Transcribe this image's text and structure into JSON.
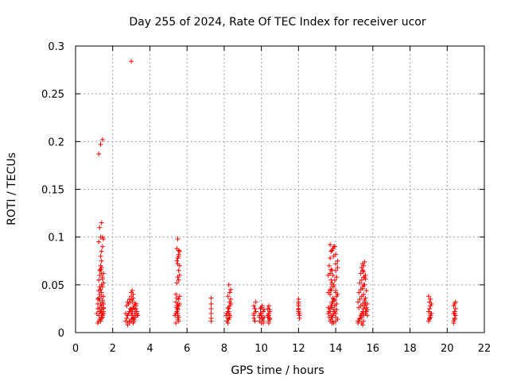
{
  "chart_data": {
    "type": "scatter",
    "title": "Day 255 of 2024, Rate Of TEC Index for receiver ucor",
    "xlabel": "GPS time / hours",
    "ylabel": "ROTI / TECUs",
    "xlim": [
      0,
      22
    ],
    "ylim": [
      0,
      0.3
    ],
    "xticks": [
      0,
      2,
      4,
      6,
      8,
      10,
      12,
      14,
      16,
      18,
      20,
      22
    ],
    "yticks": [
      0,
      0.05,
      0.1,
      0.15,
      0.2,
      0.25,
      0.3
    ],
    "xtick_labels": [
      "0",
      "2",
      "4",
      "6",
      "8",
      "10",
      "12",
      "14",
      "16",
      "18",
      "20",
      "22"
    ],
    "ytick_labels": [
      "0",
      "0.05",
      "0.1",
      "0.15",
      "0.2",
      "0.25",
      "0.3"
    ],
    "grid": true,
    "marker": "+",
    "color": "#ff0000",
    "series": [
      {
        "x": [
          1.15,
          1.2,
          1.25,
          1.3,
          1.35,
          1.4,
          1.45,
          1.5,
          1.2,
          1.3,
          1.4,
          1.45,
          1.5,
          1.35,
          1.4,
          1.5,
          1.25,
          1.3,
          1.4,
          1.45,
          1.3,
          1.4,
          1.5,
          1.45,
          1.35,
          1.4,
          1.5,
          1.2,
          1.25,
          1.3,
          1.4,
          1.45,
          1.5,
          1.35,
          1.4,
          1.45,
          1.25,
          1.35,
          1.45,
          1.5,
          1.3,
          1.4,
          1.25,
          1.35,
          1.45,
          1.2,
          1.3,
          1.4,
          1.5,
          1.35,
          1.45,
          1.25,
          1.3,
          1.4,
          1.5,
          1.35,
          1.4,
          1.45,
          1.3,
          1.25,
          1.4,
          1.45,
          1.5,
          1.35,
          1.4,
          1.45,
          2.7,
          2.75,
          2.8,
          2.85,
          2.9,
          2.95,
          3.0,
          3.05,
          3.1,
          3.15,
          3.2,
          3.25,
          3.3,
          3.35,
          2.8,
          2.9,
          3.0,
          3.1,
          3.2,
          3.3,
          2.75,
          2.85,
          2.95,
          3.05,
          3.15,
          3.25,
          2.8,
          2.9,
          3.0,
          3.1,
          3.2,
          3.3,
          2.85,
          2.95,
          3.05,
          3.15,
          3.25,
          2.7,
          2.8,
          2.9,
          3.0,
          3.1,
          3.2,
          3.3,
          2.9,
          3.0,
          3.1,
          3.0,
          3.05,
          3.1,
          3.0,
          3.05,
          3.2,
          2.8,
          3.1,
          3.25,
          2.9,
          3.15,
          3.0,
          3.1,
          5.35,
          5.4,
          5.45,
          5.5,
          5.55,
          5.6,
          5.4,
          5.45,
          5.5,
          5.55,
          5.6,
          5.4,
          5.45,
          5.5,
          5.55,
          5.6,
          5.45,
          5.5,
          5.55,
          5.6,
          5.45,
          5.5,
          5.55,
          5.6,
          5.5,
          5.55,
          5.45,
          5.5,
          5.55,
          5.5,
          5.55,
          5.45,
          5.5,
          5.4,
          5.5,
          5.45,
          5.55,
          5.5,
          7.3,
          7.3,
          7.3,
          7.3,
          7.3,
          7.3,
          8.1,
          8.15,
          8.2,
          8.25,
          8.3,
          8.35,
          8.2,
          8.25,
          8.3,
          8.35,
          8.2,
          8.25,
          8.3,
          8.15,
          8.2,
          8.25,
          8.3,
          8.35,
          8.25,
          8.3,
          8.2,
          8.3,
          9.6,
          9.65,
          9.7,
          9.6,
          9.7,
          9.6,
          9.65,
          9.7,
          9.65,
          9.6,
          9.9,
          10.0,
          10.1,
          9.95,
          10.05,
          10.15,
          9.9,
          10.0,
          10.1,
          9.95,
          10.05,
          10.15,
          10.0,
          10.1,
          9.9,
          10.0,
          10.1,
          10.05,
          10.35,
          10.4,
          10.45,
          10.35,
          10.4,
          10.45,
          10.35,
          10.4,
          10.45,
          10.4,
          10.35,
          10.4,
          10.45,
          10.4,
          12.0,
          12.0,
          12.0,
          12.0,
          12.0,
          12.0,
          12.0,
          12.0,
          12.05,
          12.05,
          12.05,
          13.6,
          13.65,
          13.7,
          13.75,
          13.8,
          13.85,
          13.9,
          13.95,
          14.0,
          14.05,
          14.1,
          13.6,
          13.7,
          13.8,
          13.9,
          14.0,
          14.1,
          13.65,
          13.75,
          13.85,
          13.95,
          14.05,
          13.6,
          13.7,
          13.8,
          13.9,
          14.0,
          14.1,
          13.65,
          13.75,
          13.85,
          13.95,
          14.05,
          13.6,
          13.7,
          13.8,
          13.9,
          14.0,
          14.1,
          13.7,
          13.8,
          13.9,
          14.0,
          13.75,
          13.85,
          13.95,
          13.7,
          13.8,
          13.9,
          13.8,
          13.85,
          13.7,
          13.75,
          13.8,
          13.75,
          13.8,
          13.7,
          13.75,
          13.8,
          13.85,
          13.9,
          14.0,
          13.9,
          14.0,
          14.05,
          13.95,
          14.0,
          15.2,
          15.25,
          15.3,
          15.35,
          15.4,
          15.45,
          15.5,
          15.55,
          15.6,
          15.65,
          15.7,
          15.2,
          15.3,
          15.4,
          15.5,
          15.6,
          15.7,
          15.25,
          15.35,
          15.45,
          15.55,
          15.65,
          15.2,
          15.3,
          15.4,
          15.5,
          15.6,
          15.7,
          15.25,
          15.35,
          15.45,
          15.55,
          15.65,
          15.3,
          15.4,
          15.5,
          15.6,
          15.35,
          15.45,
          15.55,
          15.3,
          15.4,
          15.5,
          15.6,
          15.4,
          15.5,
          15.45,
          15.55,
          15.5,
          15.45,
          15.4,
          15.5,
          15.55,
          15.45,
          15.5,
          15.6,
          19.0,
          19.05,
          19.1,
          19.15,
          19.0,
          19.05,
          19.1,
          19.15,
          19.05,
          19.1,
          19.0,
          19.1,
          19.05,
          19.1,
          20.35,
          20.4,
          20.45,
          20.35,
          20.4,
          20.45,
          20.35,
          20.4,
          20.45,
          20.4,
          20.35,
          20.4
        ],
        "y": [
          0.02,
          0.025,
          0.018,
          0.022,
          0.03,
          0.015,
          0.02,
          0.025,
          0.035,
          0.04,
          0.028,
          0.032,
          0.02,
          0.045,
          0.05,
          0.038,
          0.055,
          0.06,
          0.042,
          0.048,
          0.065,
          0.068,
          0.052,
          0.058,
          0.07,
          0.075,
          0.062,
          0.01,
          0.012,
          0.014,
          0.016,
          0.018,
          0.022,
          0.08,
          0.085,
          0.09,
          0.095,
          0.1,
          0.1,
          0.098,
          0.11,
          0.115,
          0.187,
          0.197,
          0.202,
          0.03,
          0.026,
          0.024,
          0.02,
          0.012,
          0.016,
          0.036,
          0.034,
          0.028,
          0.026,
          0.066,
          0.062,
          0.056,
          0.048,
          0.044,
          0.038,
          0.034,
          0.03,
          0.022,
          0.02,
          0.018,
          0.012,
          0.015,
          0.018,
          0.02,
          0.022,
          0.025,
          0.02,
          0.018,
          0.015,
          0.012,
          0.02,
          0.025,
          0.022,
          0.018,
          0.01,
          0.012,
          0.014,
          0.016,
          0.018,
          0.02,
          0.028,
          0.03,
          0.025,
          0.022,
          0.026,
          0.028,
          0.008,
          0.01,
          0.012,
          0.014,
          0.016,
          0.018,
          0.03,
          0.032,
          0.034,
          0.028,
          0.03,
          0.02,
          0.018,
          0.022,
          0.024,
          0.026,
          0.022,
          0.02,
          0.035,
          0.038,
          0.04,
          0.042,
          0.044,
          0.036,
          0.284,
          0.032,
          0.03,
          0.032,
          0.01,
          0.03,
          0.012,
          0.014,
          0.012,
          0.015,
          0.018,
          0.02,
          0.022,
          0.025,
          0.028,
          0.03,
          0.032,
          0.026,
          0.018,
          0.035,
          0.038,
          0.04,
          0.036,
          0.03,
          0.055,
          0.06,
          0.052,
          0.058,
          0.065,
          0.07,
          0.075,
          0.072,
          0.08,
          0.085,
          0.078,
          0.082,
          0.088,
          0.098,
          0.086,
          0.014,
          0.016,
          0.022,
          0.024,
          0.01,
          0.02,
          0.028,
          0.012,
          0.016,
          0.02,
          0.025,
          0.03,
          0.036,
          0.012,
          0.015,
          0.018,
          0.02,
          0.022,
          0.025,
          0.028,
          0.03,
          0.026,
          0.022,
          0.032,
          0.035,
          0.038,
          0.014,
          0.016,
          0.012,
          0.01,
          0.02,
          0.042,
          0.045,
          0.05,
          0.018,
          0.015,
          0.018,
          0.02,
          0.025,
          0.022,
          0.028,
          0.032,
          0.018,
          0.012,
          0.022,
          0.012,
          0.015,
          0.018,
          0.02,
          0.022,
          0.025,
          0.014,
          0.016,
          0.012,
          0.018,
          0.022,
          0.02,
          0.028,
          0.024,
          0.01,
          0.01,
          0.016,
          0.026,
          0.012,
          0.015,
          0.018,
          0.02,
          0.022,
          0.025,
          0.01,
          0.014,
          0.016,
          0.028,
          0.024,
          0.02,
          0.018,
          0.012,
          0.015,
          0.018,
          0.02,
          0.022,
          0.025,
          0.028,
          0.03,
          0.032,
          0.035,
          0.024,
          0.02,
          0.015,
          0.018,
          0.02,
          0.022,
          0.025,
          0.028,
          0.03,
          0.032,
          0.035,
          0.028,
          0.02,
          0.038,
          0.04,
          0.042,
          0.045,
          0.048,
          0.05,
          0.012,
          0.014,
          0.016,
          0.018,
          0.012,
          0.055,
          0.058,
          0.06,
          0.062,
          0.052,
          0.048,
          0.065,
          0.068,
          0.07,
          0.066,
          0.06,
          0.022,
          0.024,
          0.026,
          0.022,
          0.026,
          0.024,
          0.072,
          0.075,
          0.078,
          0.065,
          0.08,
          0.082,
          0.085,
          0.088,
          0.09,
          0.092,
          0.086,
          0.09,
          0.032,
          0.036,
          0.04,
          0.044,
          0.05,
          0.055,
          0.01,
          0.012,
          0.014,
          0.016,
          0.018,
          0.02,
          0.044,
          0.01,
          0.016,
          0.03,
          0.034,
          0.042,
          0.01,
          0.012,
          0.015,
          0.018,
          0.02,
          0.022,
          0.025,
          0.028,
          0.03,
          0.022,
          0.018,
          0.032,
          0.035,
          0.038,
          0.04,
          0.036,
          0.03,
          0.042,
          0.045,
          0.048,
          0.05,
          0.044,
          0.012,
          0.014,
          0.016,
          0.018,
          0.02,
          0.024,
          0.026,
          0.028,
          0.03,
          0.032,
          0.026,
          0.052,
          0.055,
          0.058,
          0.06,
          0.062,
          0.065,
          0.058,
          0.015,
          0.018,
          0.02,
          0.022,
          0.068,
          0.07,
          0.072,
          0.074,
          0.064,
          0.008,
          0.01,
          0.012,
          0.034,
          0.046,
          0.05,
          0.056,
          0.012,
          0.015,
          0.018,
          0.02,
          0.022,
          0.025,
          0.028,
          0.03,
          0.032,
          0.035,
          0.038,
          0.016,
          0.014,
          0.02,
          0.012,
          0.015,
          0.018,
          0.02,
          0.022,
          0.025,
          0.028,
          0.03,
          0.032,
          0.014,
          0.01,
          0.02
        ]
      }
    ]
  }
}
